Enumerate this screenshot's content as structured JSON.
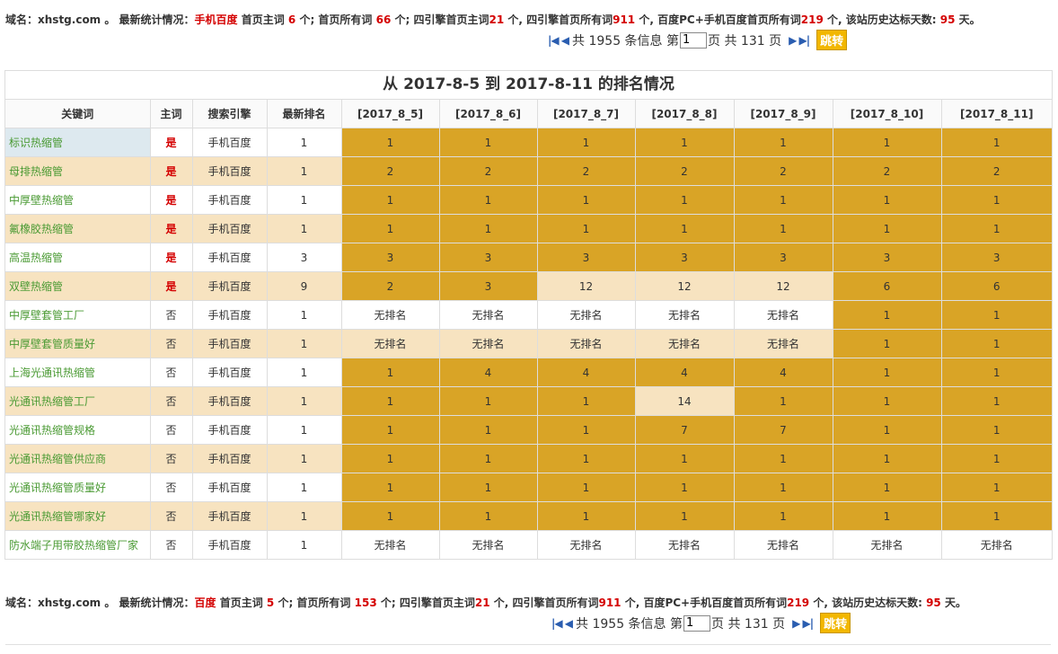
{
  "top_stats": {
    "domain_label": "域名：",
    "domain": "xhstg.com",
    "sep": " 。  最新统计情况：",
    "engine": "手机百度",
    "t1": " 首页主词 ",
    "v1": "6",
    "t2": " 个; 首页所有词 ",
    "v2": "66",
    "t3": " 个; 四引擎首页主词",
    "v3": "21",
    "t4": " 个, 四引擎首页所有词",
    "v4": "911",
    "t5": " 个, 百度PC+手机百度首页所有词",
    "v5": "219",
    "t6": " 个, 该站历史达标天数: ",
    "v6": "95",
    "t7": " 天。"
  },
  "bottom_stats": {
    "domain_label": "域名：",
    "domain": "xhstg.com",
    "sep": " 。  最新统计情况：",
    "engine": "百度",
    "t1": " 首页主词 ",
    "v1": "5",
    "t2": " 个; 首页所有词 ",
    "v2": "153",
    "t3": " 个; 四引擎首页主词",
    "v3": "21",
    "t4": " 个, 四引擎首页所有词",
    "v4": "911",
    "t5": " 个, 百度PC+手机百度首页所有词",
    "v5": "219",
    "t6": " 个, 该站历史达标天数: ",
    "v6": "95",
    "t7": " 天。"
  },
  "pager": {
    "first_prev": "|◀ ◀",
    "total_text": "共 1955 条信息 第",
    "page_value": "1",
    "page_suffix": "页 共 131 页",
    "next_last": "▶ ▶|",
    "go_label": "跳转"
  },
  "table": {
    "caption": "从 2017-8-5 到 2017-8-11 的排名情况",
    "headers": [
      "关键词",
      "主词",
      "搜索引擎",
      "最新排名",
      "[2017_8_5]",
      "[2017_8_6]",
      "[2017_8_7]",
      "[2017_8_8]",
      "[2017_8_9]",
      "[2017_8_10]",
      "[2017_8_11]"
    ],
    "rows": [
      {
        "kw": "标识热缩管",
        "main": "是",
        "engine": "手机百度",
        "latest": "1",
        "days": [
          "1",
          "1",
          "1",
          "1",
          "1",
          "1",
          "1"
        ],
        "shade": [
          "g",
          "g",
          "g",
          "g",
          "g",
          "g",
          "g"
        ]
      },
      {
        "kw": "母排热缩管",
        "main": "是",
        "engine": "手机百度",
        "latest": "1",
        "days": [
          "2",
          "2",
          "2",
          "2",
          "2",
          "2",
          "2"
        ],
        "shade": [
          "g",
          "g",
          "g",
          "g",
          "g",
          "g",
          "g"
        ]
      },
      {
        "kw": "中厚壁热缩管",
        "main": "是",
        "engine": "手机百度",
        "latest": "1",
        "days": [
          "1",
          "1",
          "1",
          "1",
          "1",
          "1",
          "1"
        ],
        "shade": [
          "g",
          "g",
          "g",
          "g",
          "g",
          "g",
          "g"
        ]
      },
      {
        "kw": "氟橡胶热缩管",
        "main": "是",
        "engine": "手机百度",
        "latest": "1",
        "days": [
          "1",
          "1",
          "1",
          "1",
          "1",
          "1",
          "1"
        ],
        "shade": [
          "g",
          "g",
          "g",
          "g",
          "g",
          "g",
          "g"
        ]
      },
      {
        "kw": "高温热缩管",
        "main": "是",
        "engine": "手机百度",
        "latest": "3",
        "days": [
          "3",
          "3",
          "3",
          "3",
          "3",
          "3",
          "3"
        ],
        "shade": [
          "g",
          "g",
          "g",
          "g",
          "g",
          "g",
          "g"
        ]
      },
      {
        "kw": "双壁热缩管",
        "main": "是",
        "engine": "手机百度",
        "latest": "9",
        "days": [
          "2",
          "3",
          "12",
          "12",
          "12",
          "6",
          "6"
        ],
        "shade": [
          "g",
          "g",
          "l",
          "l",
          "l",
          "g",
          "g"
        ]
      },
      {
        "kw": "中厚壁套管工厂",
        "main": "否",
        "engine": "手机百度",
        "latest": "1",
        "days": [
          "无排名",
          "无排名",
          "无排名",
          "无排名",
          "无排名",
          "1",
          "1"
        ],
        "shade": [
          "w",
          "w",
          "w",
          "w",
          "w",
          "g",
          "g"
        ]
      },
      {
        "kw": "中厚壁套管质量好",
        "main": "否",
        "engine": "手机百度",
        "latest": "1",
        "days": [
          "无排名",
          "无排名",
          "无排名",
          "无排名",
          "无排名",
          "1",
          "1"
        ],
        "shade": [
          "l",
          "l",
          "l",
          "l",
          "l",
          "g",
          "g"
        ]
      },
      {
        "kw": "上海光通讯热缩管",
        "main": "否",
        "engine": "手机百度",
        "latest": "1",
        "days": [
          "1",
          "4",
          "4",
          "4",
          "4",
          "1",
          "1"
        ],
        "shade": [
          "g",
          "g",
          "g",
          "g",
          "g",
          "g",
          "g"
        ]
      },
      {
        "kw": "光通讯热缩管工厂",
        "main": "否",
        "engine": "手机百度",
        "latest": "1",
        "days": [
          "1",
          "1",
          "1",
          "14",
          "1",
          "1",
          "1"
        ],
        "shade": [
          "g",
          "g",
          "g",
          "l",
          "g",
          "g",
          "g"
        ]
      },
      {
        "kw": "光通讯热缩管规格",
        "main": "否",
        "engine": "手机百度",
        "latest": "1",
        "days": [
          "1",
          "1",
          "1",
          "7",
          "7",
          "1",
          "1"
        ],
        "shade": [
          "g",
          "g",
          "g",
          "g",
          "g",
          "g",
          "g"
        ]
      },
      {
        "kw": "光通讯热缩管供应商",
        "main": "否",
        "engine": "手机百度",
        "latest": "1",
        "days": [
          "1",
          "1",
          "1",
          "1",
          "1",
          "1",
          "1"
        ],
        "shade": [
          "g",
          "g",
          "g",
          "g",
          "g",
          "g",
          "g"
        ]
      },
      {
        "kw": "光通讯热缩管质量好",
        "main": "否",
        "engine": "手机百度",
        "latest": "1",
        "days": [
          "1",
          "1",
          "1",
          "1",
          "1",
          "1",
          "1"
        ],
        "shade": [
          "g",
          "g",
          "g",
          "g",
          "g",
          "g",
          "g"
        ]
      },
      {
        "kw": "光通讯热缩管哪家好",
        "main": "否",
        "engine": "手机百度",
        "latest": "1",
        "days": [
          "1",
          "1",
          "1",
          "1",
          "1",
          "1",
          "1"
        ],
        "shade": [
          "g",
          "g",
          "g",
          "g",
          "g",
          "g",
          "g"
        ]
      },
      {
        "kw": "防水端子用带胶热缩管厂家",
        "main": "否",
        "engine": "手机百度",
        "latest": "1",
        "days": [
          "无排名",
          "无排名",
          "无排名",
          "无排名",
          "无排名",
          "无排名",
          "无排名"
        ],
        "shade": [
          "w",
          "w",
          "w",
          "w",
          "w",
          "w",
          "w"
        ]
      }
    ]
  },
  "colors": {
    "gold": "#d9a426",
    "light": "#f7e3c0",
    "keyword": "#4a9a33",
    "red": "#d40000",
    "go_button": "#f2b700"
  }
}
